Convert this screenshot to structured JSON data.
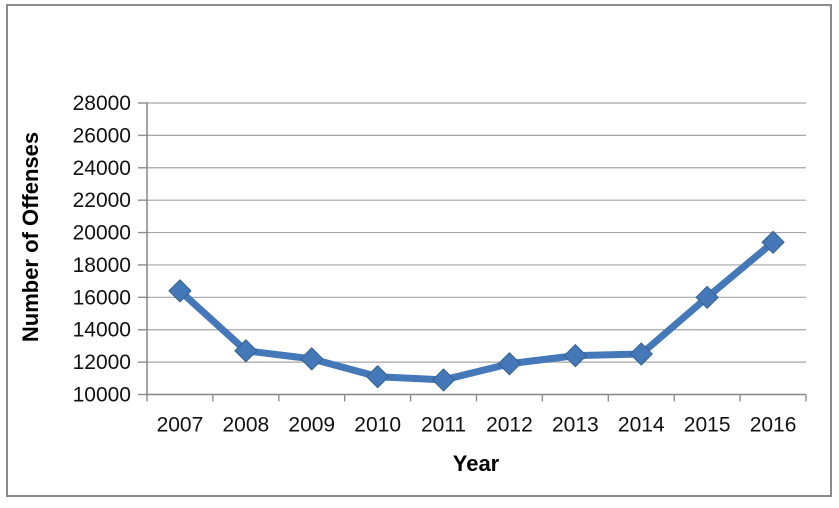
{
  "window": {
    "background": "#ffffff",
    "frame_border_color": "#8a8a8a"
  },
  "chart_data": {
    "type": "line",
    "title": "",
    "xlabel": "Year",
    "ylabel": "Number of Offenses",
    "categories": [
      "2007",
      "2008",
      "2009",
      "2010",
      "2011",
      "2012",
      "2013",
      "2014",
      "2015",
      "2016"
    ],
    "series": [
      {
        "name": "Number of Offenses",
        "values": [
          16400,
          12700,
          12200,
          11100,
          10900,
          11900,
          12400,
          12500,
          16000,
          19400
        ]
      }
    ],
    "ylim": [
      10000,
      28000
    ],
    "y_ticks": [
      10000,
      12000,
      14000,
      16000,
      18000,
      20000,
      22000,
      24000,
      26000,
      28000
    ],
    "grid": true,
    "legend_position": "none",
    "marker": "diamond",
    "line_color": "#4478b8",
    "marker_edge_color": "#35618e",
    "gridline_color": "#a6a6a6",
    "axis_color": "#8c8c8c",
    "text_color": "#111111"
  }
}
